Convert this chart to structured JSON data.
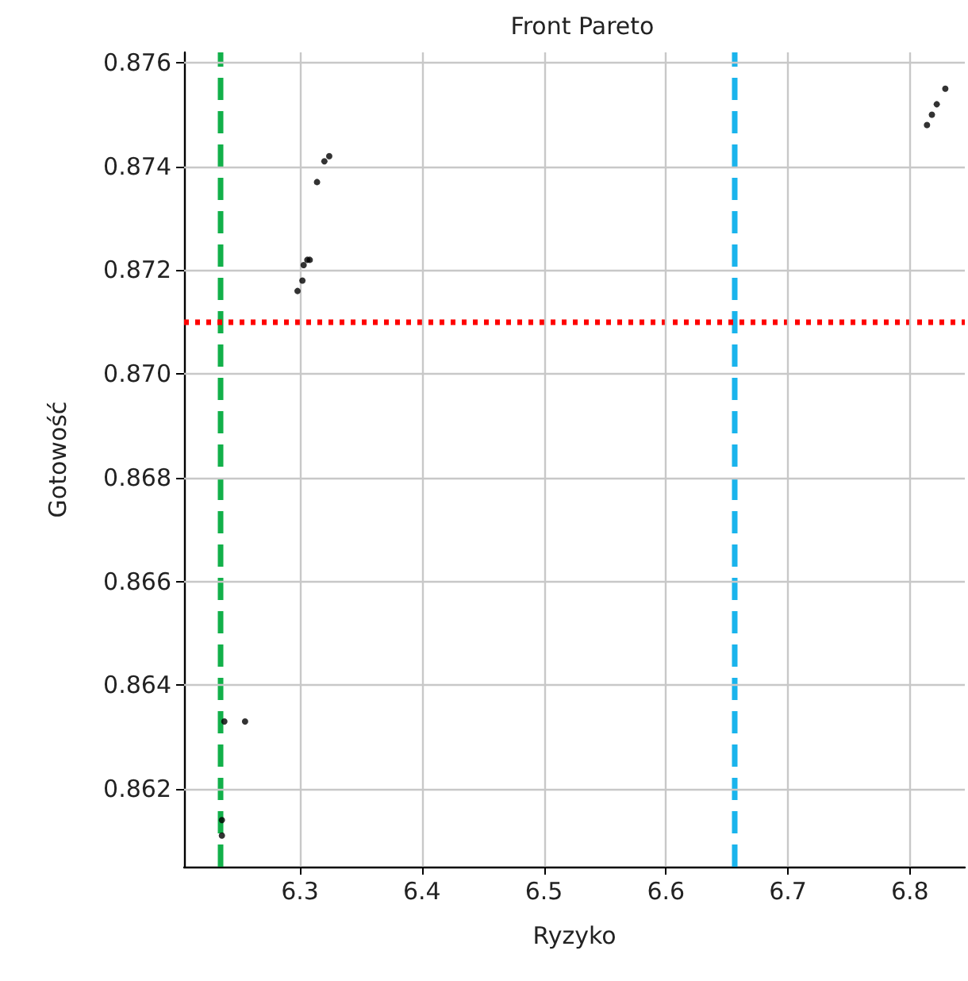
{
  "chart_data": {
    "type": "scatter",
    "title": "Front Pareto",
    "xlabel": "Ryzyko",
    "ylabel": "Gotowość",
    "x": [
      6.236,
      6.236,
      6.238,
      6.255,
      6.298,
      6.302,
      6.303,
      6.306,
      6.308,
      6.314,
      6.32,
      6.324,
      6.814,
      6.818,
      6.822,
      6.829
    ],
    "series": [
      {
        "color": "#000000",
        "values": [
          0.8611,
          0.8614,
          0.8633,
          0.8633,
          0.8716,
          0.8718,
          0.8721,
          0.8722,
          0.8722,
          0.8737,
          0.8741,
          0.8742,
          0.8748,
          0.875,
          0.8752,
          0.8755
        ]
      }
    ],
    "xlim": [
      6.205,
      6.845
    ],
    "ylim": [
      0.8605,
      0.8762
    ],
    "xticks": [
      6.3,
      6.4,
      6.5,
      6.6,
      6.7,
      6.8
    ],
    "yticks": [
      0.862,
      0.864,
      0.866,
      0.868,
      {
        "value": 0.87,
        "label": "0.870"
      },
      0.872,
      0.874,
      0.876
    ],
    "ref_lines": [
      {
        "axis": "x",
        "value": 6.235,
        "color": "#12b04a",
        "line_style": "dashed"
      },
      {
        "axis": "x",
        "value": 6.656,
        "color": "#1ab4ec",
        "line_style": "dashed"
      },
      {
        "axis": "y",
        "value": 0.871,
        "color": "#ff0000",
        "line_style": "dotted"
      }
    ],
    "grid": true,
    "marker": "circle"
  }
}
